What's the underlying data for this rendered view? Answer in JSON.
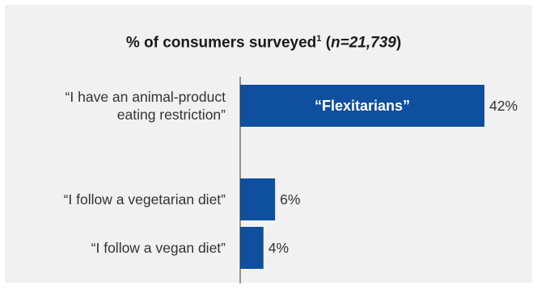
{
  "title": {
    "main": "% of consumers surveyed",
    "footnote_mark": "1",
    "n_open": " (",
    "n_text": "n=21,739",
    "n_close": ")"
  },
  "colors": {
    "bar": "#0e4f9e",
    "panel": "#f1f1f1",
    "axis": "#333333"
  },
  "chart_data": {
    "type": "bar",
    "orientation": "horizontal",
    "title": "% of consumers surveyed¹ (n=21,739)",
    "categories": [
      [
        "“I have an animal-product",
        "eating restriction”"
      ],
      [
        "“I follow a vegetarian diet”"
      ],
      [
        "“I follow a vegan diet”"
      ]
    ],
    "values": [
      42,
      6,
      4
    ],
    "value_labels": [
      "42%",
      "6%",
      "4%"
    ],
    "bar_annotations": [
      "“Flexitarians”",
      "",
      ""
    ],
    "xlim": [
      0,
      42
    ],
    "grid": false,
    "legend": "none"
  }
}
